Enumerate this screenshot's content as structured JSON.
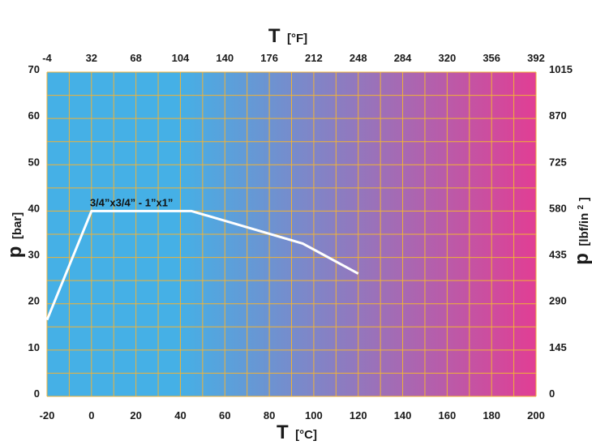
{
  "chart_data": {
    "type": "line",
    "x_axis_bottom": {
      "label_main": "T",
      "label_unit": "[°C]",
      "range": [
        -20,
        200
      ],
      "ticks": [
        -20,
        0,
        20,
        40,
        60,
        80,
        100,
        120,
        140,
        160,
        180,
        200
      ]
    },
    "x_axis_top": {
      "label_main": "T",
      "label_unit": "[°F]",
      "ticks": [
        -4,
        32,
        68,
        104,
        140,
        176,
        212,
        248,
        284,
        320,
        356,
        392
      ]
    },
    "y_axis_left": {
      "label_main": "p",
      "label_unit": "[bar]",
      "range": [
        0,
        70
      ],
      "ticks": [
        0,
        10,
        20,
        30,
        40,
        50,
        60,
        70
      ]
    },
    "y_axis_right": {
      "label_main": "p",
      "label_unit": "[lbf/in",
      "label_sup": "2",
      "label_close": "]",
      "ticks": [
        0,
        145,
        290,
        435,
        580,
        725,
        870,
        1015
      ]
    },
    "grid": true,
    "background_gradient": [
      "#45b0e6",
      "#e13e94"
    ],
    "gridline_color": "#f0b236",
    "series": [
      {
        "name": "3/4”x3/4” - 1”x1”",
        "color": "#ffffff",
        "x": [
          -20,
          0,
          45,
          95,
          120
        ],
        "y": [
          16.5,
          40,
          40,
          33,
          26.5
        ]
      }
    ]
  }
}
